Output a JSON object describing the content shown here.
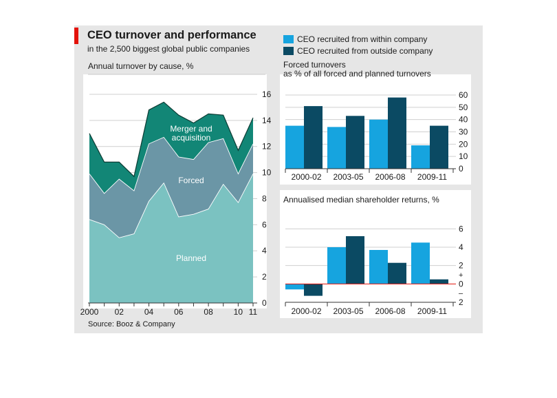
{
  "header": {
    "title": "CEO turnover and performance",
    "subtitle": "in the 2,500 biggest global public companies",
    "source": "Source: Booz & Company"
  },
  "legend": [
    {
      "label": "CEO recruited from within company",
      "color": "#16a4df"
    },
    {
      "label": "CEO recruited from outside company",
      "color": "#0b4a63"
    }
  ],
  "colors": {
    "planned": "#7bc2c1",
    "forced": "#6b96a6",
    "merger": "#128676",
    "axis_red": "#e3120b"
  },
  "chart_data": [
    {
      "type": "area",
      "subtitle": "Annual turnover by cause, %",
      "x": [
        2000,
        2001,
        2002,
        2003,
        2004,
        2005,
        2006,
        2007,
        2008,
        2009,
        2010,
        2011
      ],
      "x_tick_labels": [
        {
          "x": 2000,
          "label": "2000"
        },
        {
          "x": 2002,
          "label": "02"
        },
        {
          "x": 2004,
          "label": "04"
        },
        {
          "x": 2006,
          "label": "06"
        },
        {
          "x": 2008,
          "label": "08"
        },
        {
          "x": 2010,
          "label": "10"
        },
        {
          "x": 2011,
          "label": "11"
        }
      ],
      "stacked": true,
      "series": [
        {
          "name": "Planned",
          "values": [
            6.4,
            6.0,
            5.0,
            5.3,
            7.8,
            9.2,
            6.6,
            6.8,
            7.2,
            9.1,
            7.7,
            9.9
          ]
        },
        {
          "name": "Forced",
          "values": [
            3.5,
            2.4,
            4.5,
            3.3,
            4.4,
            3.5,
            4.6,
            4.2,
            5.1,
            3.5,
            2.2,
            2.3
          ]
        },
        {
          "name": "Merger and acquisition",
          "values": [
            3.1,
            2.4,
            1.3,
            1.1,
            2.6,
            2.7,
            3.2,
            2.8,
            2.2,
            1.8,
            1.8,
            2.0
          ]
        }
      ],
      "ylim": [
        0,
        17
      ],
      "yticks": [
        0,
        2,
        4,
        6,
        8,
        10,
        12,
        14,
        16
      ],
      "grid": true
    },
    {
      "type": "bar",
      "title": "Forced turnovers",
      "subtitle": "as % of all forced and planned turnovers",
      "categories": [
        "2000-02",
        "2003-05",
        "2006-08",
        "2009-11"
      ],
      "series": [
        {
          "name": "CEO recruited from within company",
          "values": [
            35,
            34,
            40,
            19
          ]
        },
        {
          "name": "CEO recruited from outside company",
          "values": [
            51,
            43,
            58,
            35
          ]
        }
      ],
      "ylim": [
        0,
        60
      ],
      "yticks": [
        0,
        10,
        20,
        30,
        40,
        50,
        60
      ],
      "grid": true
    },
    {
      "type": "bar",
      "title": "Annualised median shareholder returns, %",
      "categories": [
        "2000-02",
        "2003-05",
        "2006-08",
        "2009-11"
      ],
      "series": [
        {
          "name": "CEO recruited from within company",
          "values": [
            -0.6,
            4.0,
            3.7,
            4.5
          ]
        },
        {
          "name": "CEO recruited from outside company",
          "values": [
            -1.3,
            5.2,
            2.3,
            0.5
          ]
        }
      ],
      "ylim": [
        -2,
        7
      ],
      "yticks": [
        -2,
        0,
        2,
        4,
        6
      ],
      "ytick_labels": [
        {
          "value": -2,
          "label": "2"
        },
        {
          "value": 0,
          "label": "0"
        },
        {
          "value": 2,
          "label": "2"
        },
        {
          "value": 4,
          "label": "4"
        },
        {
          "value": 6,
          "label": "6"
        }
      ],
      "sign_markers": [
        {
          "value": 1,
          "label": "+"
        },
        {
          "value": -1,
          "label": "–"
        }
      ],
      "grid": true
    }
  ]
}
